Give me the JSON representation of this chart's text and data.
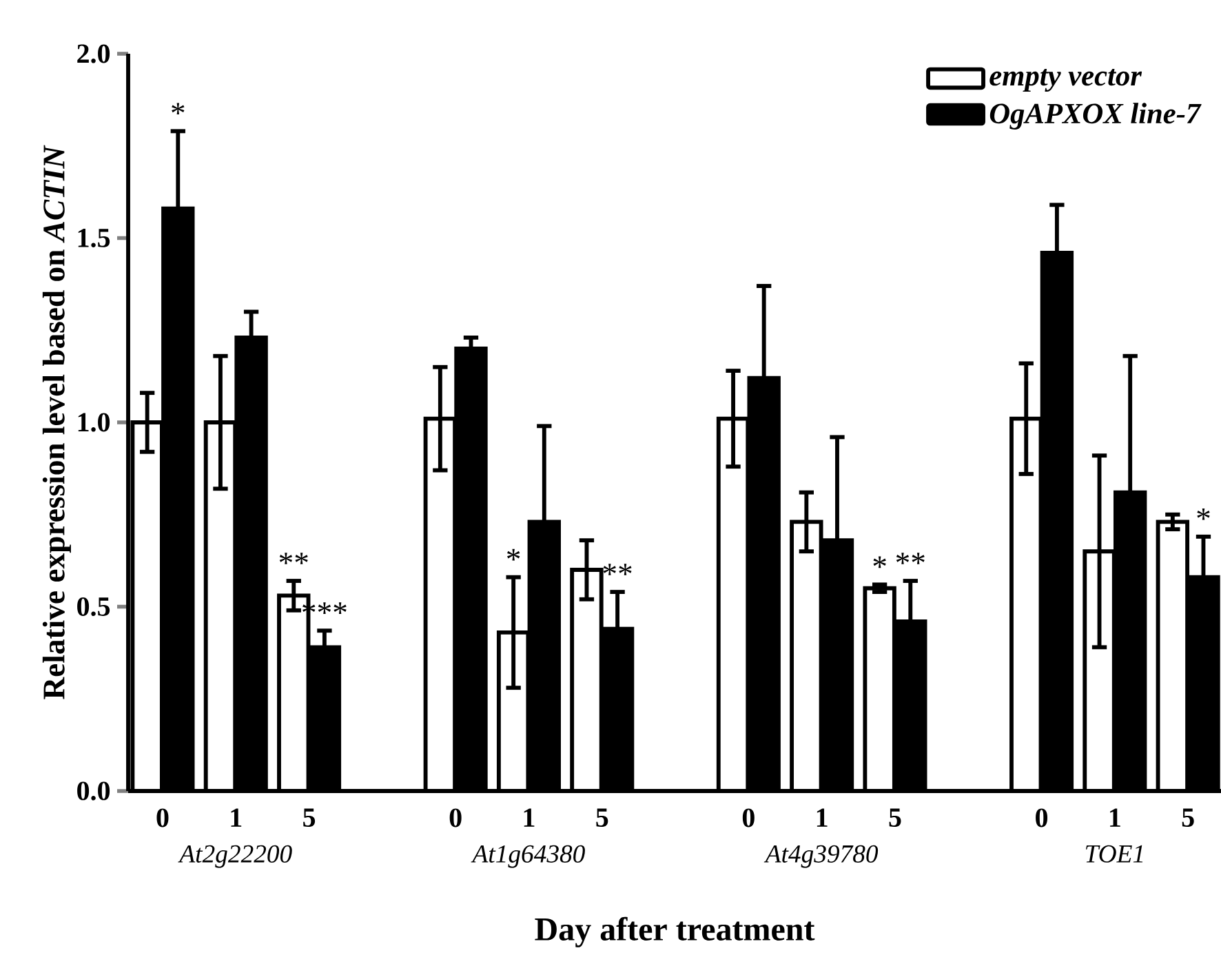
{
  "chart_data": {
    "type": "bar",
    "xlabel": "Day after treatment",
    "ylabel": "Relative expression level based on *ACTIN*",
    "categories": [
      "0",
      "1",
      "5",
      null,
      "0",
      "1",
      "5",
      null,
      "0",
      "1",
      "5",
      null,
      "0",
      "1",
      "5"
    ],
    "series": [
      {
        "name": "empty vector",
        "color": "#ffffff",
        "values": [
          1.0,
          1.0,
          0.53,
          null,
          1.01,
          0.43,
          0.6,
          null,
          1.01,
          0.73,
          0.55,
          null,
          1.01,
          0.65,
          0.73
        ],
        "errors": [
          0.08,
          0.18,
          0.04,
          null,
          0.14,
          0.15,
          0.08,
          null,
          0.13,
          0.08,
          0.01,
          null,
          0.15,
          0.26,
          0.02
        ],
        "value_labels": [
          null,
          null,
          "**",
          null,
          null,
          "*",
          null,
          null,
          null,
          null,
          "*",
          null,
          null,
          null,
          null
        ]
      },
      {
        "name": "OgAPXOX line-7",
        "color": "#000000",
        "values": [
          1.58,
          1.23,
          0.39,
          null,
          1.2,
          0.73,
          0.44,
          null,
          1.12,
          0.68,
          0.46,
          null,
          1.46,
          0.81,
          0.58
        ],
        "errors": [
          0.21,
          0.07,
          0.045,
          null,
          0.03,
          0.26,
          0.1,
          null,
          0.25,
          0.28,
          0.11,
          null,
          0.13,
          0.37,
          0.11
        ],
        "value_labels": [
          "*",
          null,
          "***",
          null,
          null,
          null,
          "**",
          null,
          null,
          null,
          "**",
          null,
          null,
          null,
          "*"
        ]
      }
    ],
    "ylim": [
      0,
      2.0
    ],
    "yticks": [
      {
        "value": 0,
        "label": "0.0"
      },
      {
        "value": 0.5,
        "label": "0.5"
      },
      {
        "value": 1.0,
        "label": "1.0"
      },
      {
        "value": 1.5,
        "label": "1.5"
      },
      {
        "value": 2.0,
        "label": "2.0"
      }
    ],
    "annotations": [
      "At2g22200",
      "At1g64380",
      "At4g39780",
      "TOE1"
    ],
    "legend": "top right"
  }
}
